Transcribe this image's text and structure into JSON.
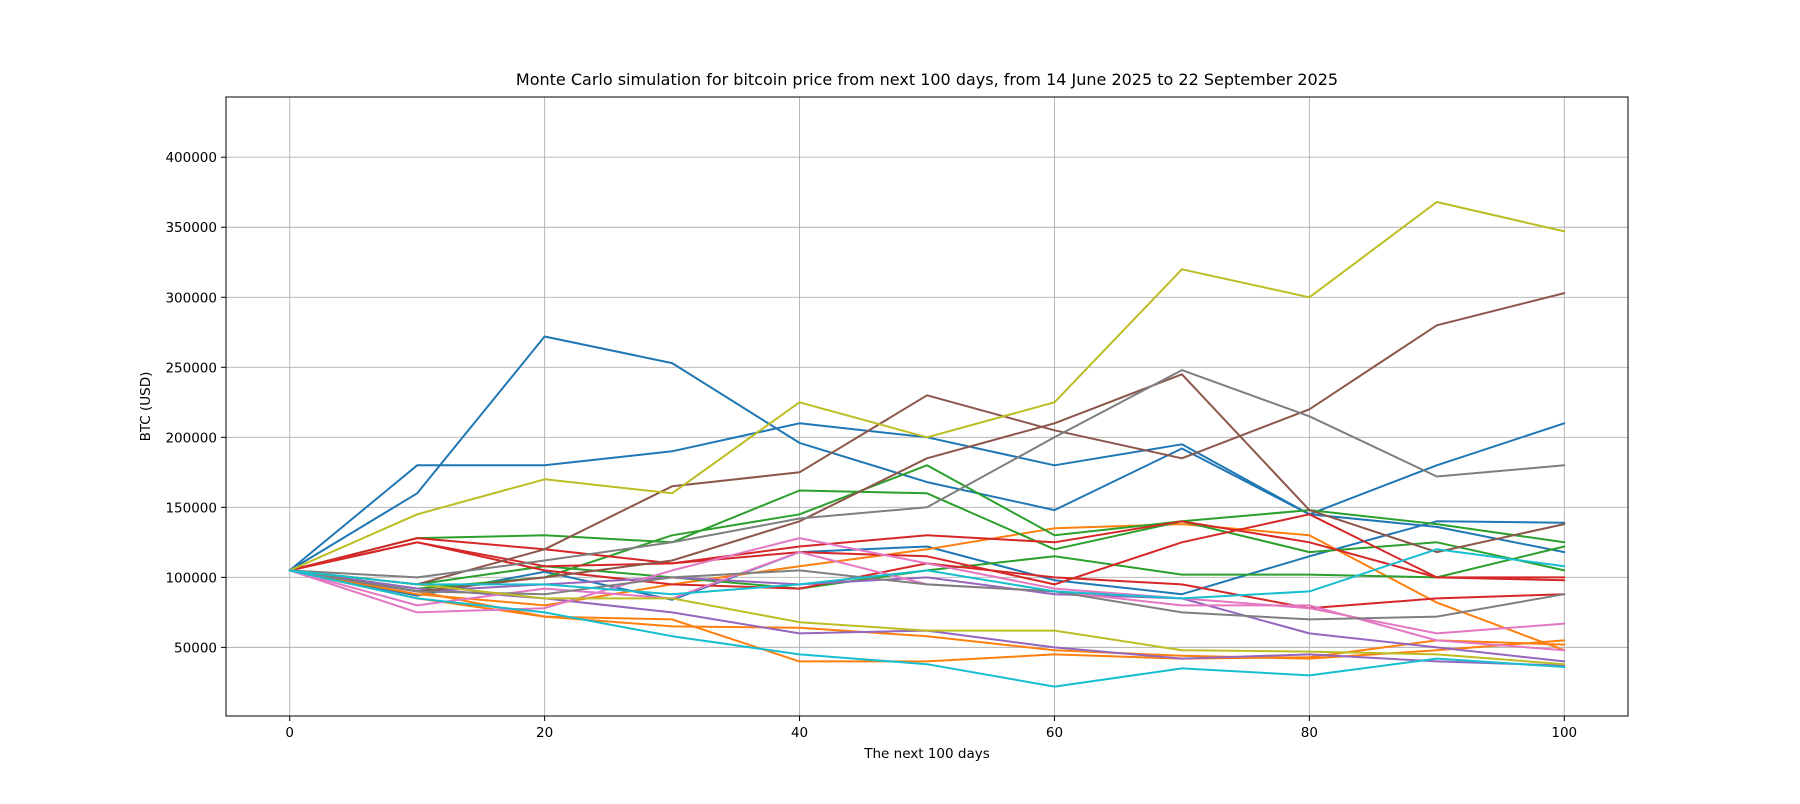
{
  "chart_data": {
    "type": "line",
    "title": "Monte Carlo simulation for bitcoin price from next 100 days, from 14 June 2025 to 22 September 2025",
    "xlabel": "The next 100 days",
    "ylabel": "BTC (USD)",
    "xlim": [
      -5,
      105
    ],
    "ylim": [
      1000,
      443000
    ],
    "xticks": [
      0,
      20,
      40,
      60,
      80,
      100
    ],
    "yticks": [
      50000,
      100000,
      150000,
      200000,
      250000,
      300000,
      350000,
      400000
    ],
    "grid": true,
    "legend": "none",
    "start_value": 105000,
    "colors": [
      "#1f77b4",
      "#ff7f0e",
      "#2ca02c",
      "#d62728",
      "#9467bd",
      "#8c564b",
      "#e377c2",
      "#7f7f7f",
      "#bcbd22",
      "#17becf"
    ],
    "x": [
      0,
      10,
      20,
      30,
      40,
      50,
      60,
      70,
      80,
      90,
      100
    ],
    "series": [
      {
        "color": "#1f77b4",
        "values": [
          105000,
          160000,
          272000,
          253000,
          196000,
          168000,
          148000,
          192000,
          145000,
          136000,
          118000
        ]
      },
      {
        "color": "#1f77b4",
        "values": [
          105000,
          180000,
          180000,
          190000,
          210000,
          200000,
          180000,
          195000,
          145000,
          180000,
          210000
        ]
      },
      {
        "color": "#1f77b4",
        "values": [
          105000,
          87000,
          104000,
          84000,
          118000,
          122000,
          98000,
          88000,
          115000,
          140000,
          139000
        ]
      },
      {
        "color": "#ff7f0e",
        "values": [
          105000,
          90000,
          72000,
          65000,
          64000,
          58000,
          48000,
          44000,
          42000,
          48000,
          55000
        ]
      },
      {
        "color": "#ff7f0e",
        "values": [
          105000,
          85000,
          72000,
          70000,
          40000,
          40000,
          45000,
          42000,
          43000,
          55000,
          52000
        ]
      },
      {
        "color": "#ff7f0e",
        "values": [
          105000,
          88000,
          80000,
          95000,
          108000,
          120000,
          135000,
          138000,
          130000,
          82000,
          48000
        ]
      },
      {
        "color": "#2ca02c",
        "values": [
          105000,
          128000,
          130000,
          125000,
          162000,
          160000,
          120000,
          140000,
          148000,
          138000,
          125000
        ]
      },
      {
        "color": "#2ca02c",
        "values": [
          105000,
          95000,
          108000,
          100000,
          92000,
          105000,
          115000,
          102000,
          102000,
          100000,
          122000
        ]
      },
      {
        "color": "#2ca02c",
        "values": [
          105000,
          92000,
          100000,
          130000,
          145000,
          180000,
          130000,
          140000,
          118000,
          125000,
          105000
        ]
      },
      {
        "color": "#d62728",
        "values": [
          105000,
          125000,
          108000,
          110000,
          118000,
          115000,
          95000,
          125000,
          145000,
          100000,
          98000
        ]
      },
      {
        "color": "#d62728",
        "values": [
          105000,
          125000,
          105000,
          95000,
          92000,
          110000,
          100000,
          95000,
          78000,
          85000,
          88000
        ]
      },
      {
        "color": "#d62728",
        "values": [
          105000,
          128000,
          120000,
          110000,
          122000,
          130000,
          125000,
          140000,
          125000,
          100000,
          100000
        ]
      },
      {
        "color": "#9467bd",
        "values": [
          105000,
          92000,
          85000,
          75000,
          60000,
          62000,
          50000,
          42000,
          45000,
          40000,
          37000
        ]
      },
      {
        "color": "#9467bd",
        "values": [
          105000,
          90000,
          95000,
          100000,
          95000,
          100000,
          88000,
          85000,
          60000,
          50000,
          40000
        ]
      },
      {
        "color": "#8c564b",
        "values": [
          105000,
          95000,
          120000,
          165000,
          175000,
          230000,
          205000,
          185000,
          220000,
          280000,
          303000
        ]
      },
      {
        "color": "#8c564b",
        "values": [
          105000,
          90000,
          100000,
          112000,
          140000,
          185000,
          210000,
          245000,
          148000,
          118000,
          138000
        ]
      },
      {
        "color": "#e377c2",
        "values": [
          105000,
          75000,
          78000,
          105000,
          128000,
          110000,
          92000,
          85000,
          78000,
          60000,
          67000
        ]
      },
      {
        "color": "#e377c2",
        "values": [
          105000,
          80000,
          92000,
          85000,
          118000,
          95000,
          90000,
          80000,
          80000,
          55000,
          48000
        ]
      },
      {
        "color": "#7f7f7f",
        "values": [
          105000,
          100000,
          112000,
          125000,
          142000,
          150000,
          200000,
          248000,
          215000,
          172000,
          180000
        ]
      },
      {
        "color": "#7f7f7f",
        "values": [
          105000,
          90000,
          88000,
          100000,
          105000,
          95000,
          90000,
          75000,
          70000,
          72000,
          88000
        ]
      },
      {
        "color": "#bcbd22",
        "values": [
          105000,
          145000,
          170000,
          160000,
          225000,
          200000,
          225000,
          320000,
          300000,
          368000,
          347000
        ]
      },
      {
        "color": "#bcbd22",
        "values": [
          105000,
          95000,
          85000,
          85000,
          68000,
          62000,
          62000,
          48000,
          47000,
          45000,
          38000
        ]
      },
      {
        "color": "#17becf",
        "values": [
          105000,
          85000,
          75000,
          58000,
          45000,
          38000,
          22000,
          35000,
          30000,
          42000,
          36000
        ]
      },
      {
        "color": "#17becf",
        "values": [
          105000,
          95000,
          95000,
          88000,
          95000,
          105000,
          90000,
          85000,
          90000,
          120000,
          108000
        ]
      }
    ]
  }
}
